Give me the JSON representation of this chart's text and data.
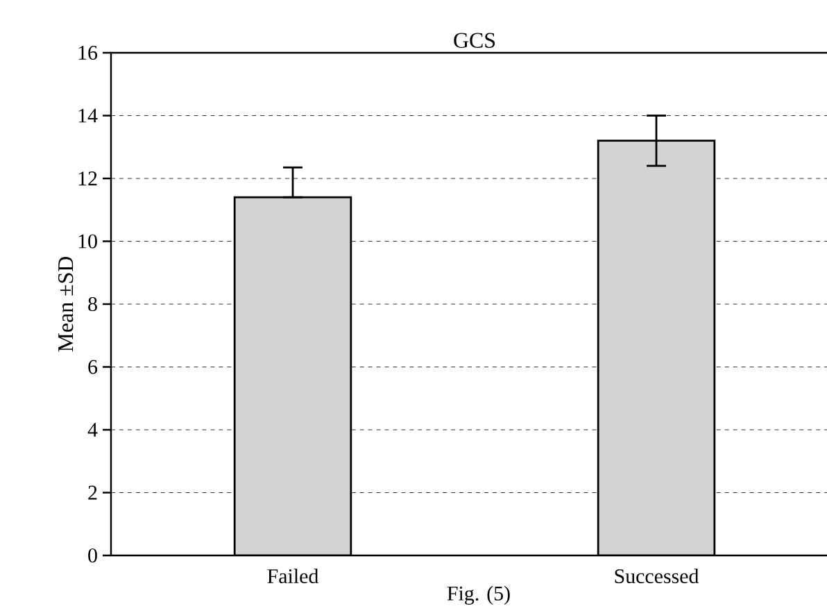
{
  "chart_data": {
    "type": "bar",
    "title": "GCS",
    "ylabel": "Mean ±SD",
    "categories": [
      "Failed",
      "Successed"
    ],
    "values": [
      11.4,
      13.2
    ],
    "errors": [
      [
        11.4,
        12.35
      ],
      [
        12.4,
        14.0
      ]
    ],
    "color": "#d3d3d3",
    "ylim": [
      0,
      16
    ],
    "yticks": [
      0,
      2,
      4,
      6,
      8,
      10,
      12,
      14,
      16
    ],
    "grid": "y",
    "annotations": [
      "Fig. (5)"
    ]
  }
}
